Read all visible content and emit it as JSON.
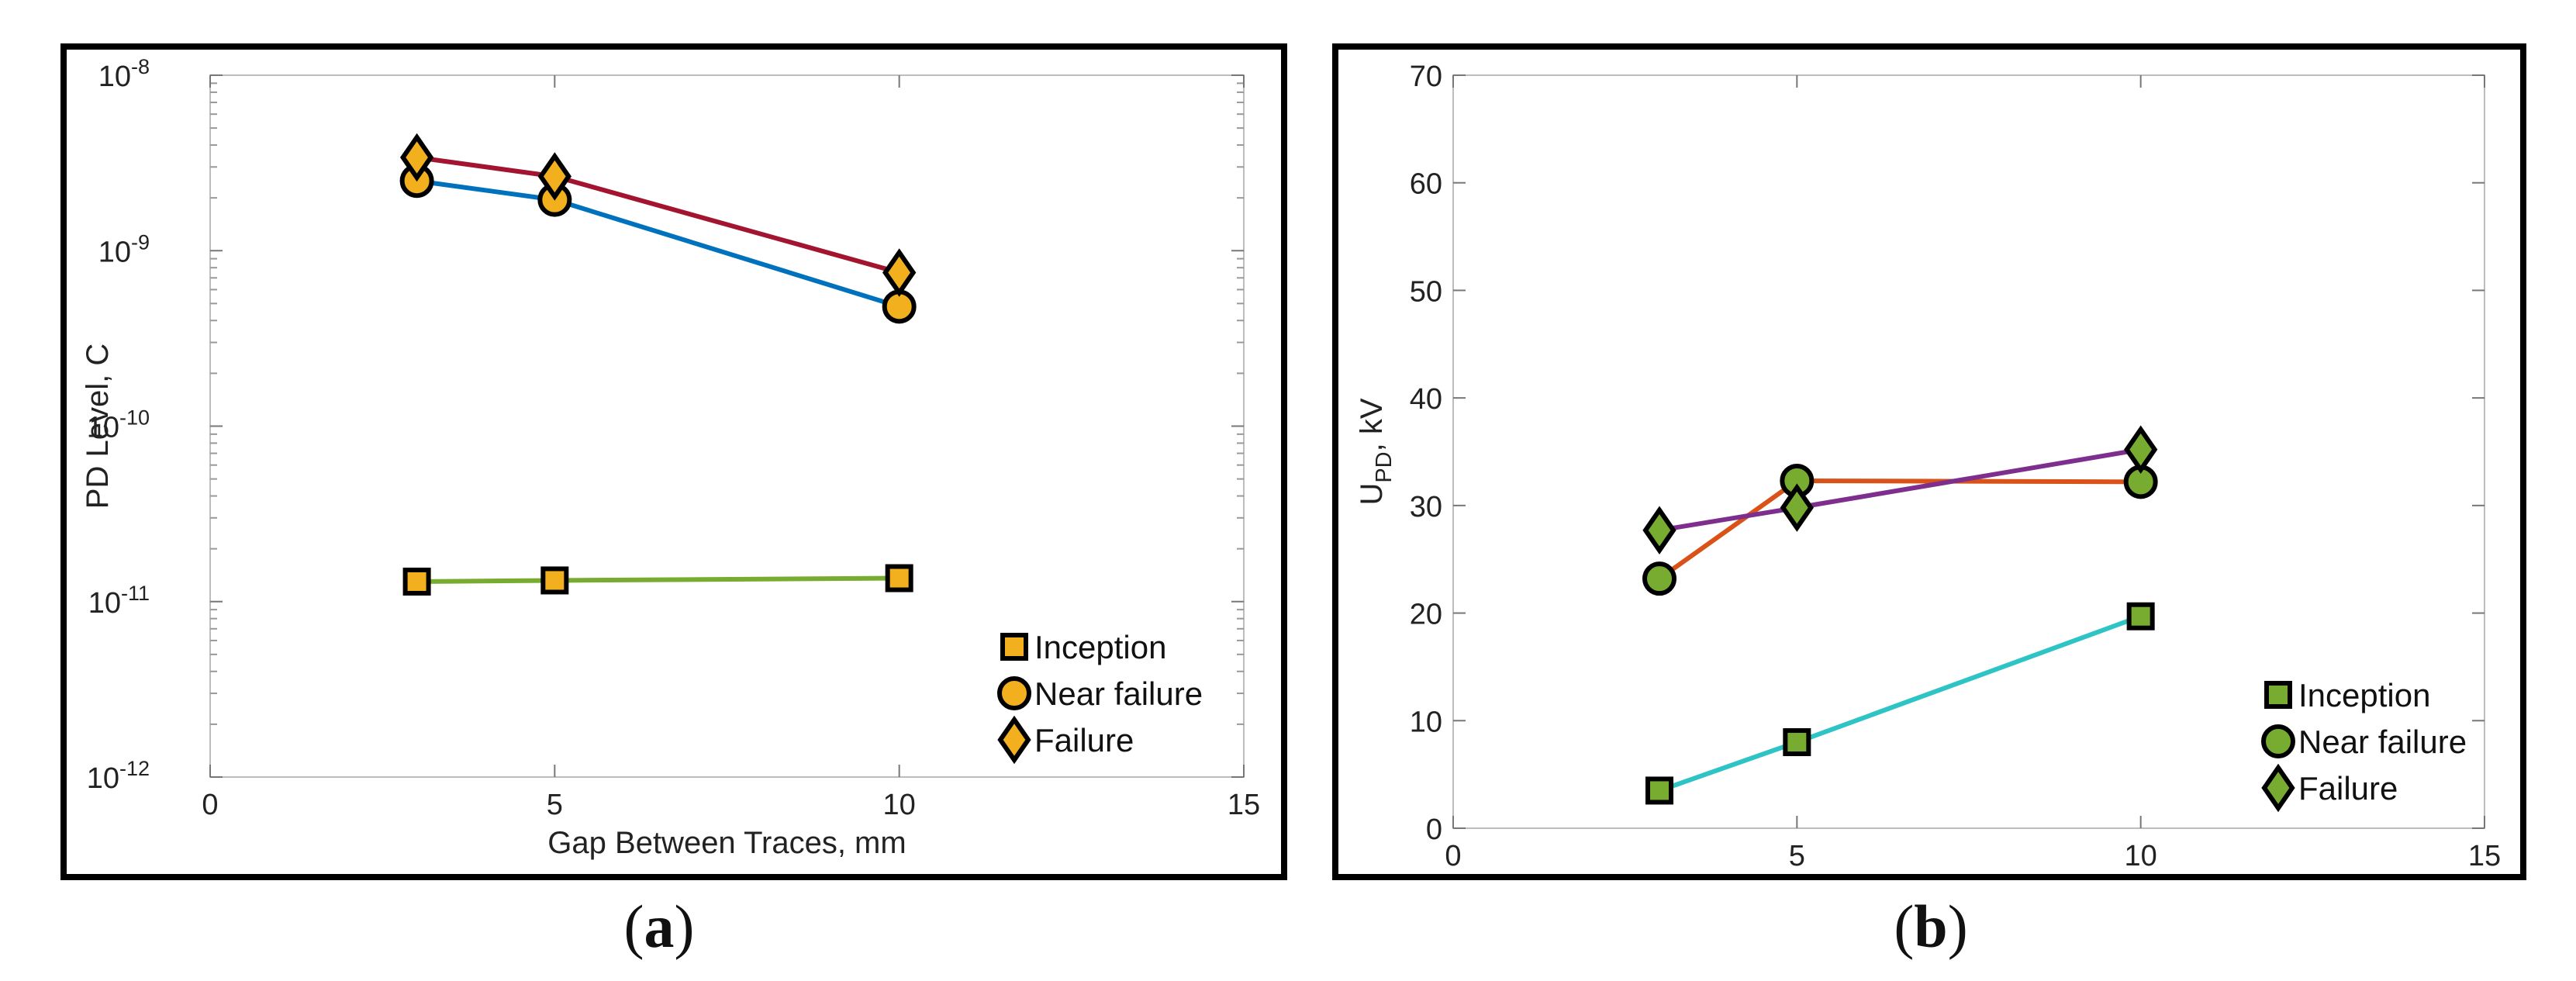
{
  "chart_data": [
    {
      "type": "line",
      "panel": "a",
      "caption_letter": "a",
      "yscale": "log",
      "xlabel": "Gap Between Traces, mm",
      "ylabel": "PD Level, C",
      "xlim": [
        0,
        15
      ],
      "ylim": [
        1e-12,
        1e-08
      ],
      "xticks": [
        0,
        5,
        10,
        15
      ],
      "yticks": [
        {
          "value": 1e-12,
          "base": "10",
          "exp": "-12"
        },
        {
          "value": 1e-11,
          "base": "10",
          "exp": "-11"
        },
        {
          "value": 1e-10,
          "base": "10",
          "exp": "-10"
        },
        {
          "value": 1e-09,
          "base": "10",
          "exp": "-9"
        },
        {
          "value": 1e-08,
          "base": "10",
          "exp": "-8"
        }
      ],
      "marker_color": "#f2b01e",
      "legend_position": "bottom-right",
      "series": [
        {
          "name": "Inception",
          "marker": "square",
          "color": "#77ac30",
          "x": [
            3,
            5,
            10
          ],
          "y": [
            1.3e-11,
            1.32e-11,
            1.36e-11
          ]
        },
        {
          "name": "Near failure",
          "marker": "circle",
          "color": "#0072bd",
          "x": [
            3,
            5,
            10
          ],
          "y": [
            2.5e-09,
            1.95e-09,
            4.8e-10
          ]
        },
        {
          "name": "Failure",
          "marker": "diamond",
          "color": "#a2142f",
          "x": [
            3,
            5,
            10
          ],
          "y": [
            3.4e-09,
            2.65e-09,
            7.5e-10
          ]
        }
      ]
    },
    {
      "type": "line",
      "panel": "b",
      "caption_letter": "b",
      "yscale": "linear",
      "xlabel": "",
      "ylabel_main": "U",
      "ylabel_sub": "PD",
      "ylabel_tail": ", kV",
      "xlim": [
        0,
        15
      ],
      "ylim": [
        0,
        70
      ],
      "xticks": [
        0,
        5,
        10,
        15
      ],
      "yticks": [
        0,
        10,
        20,
        30,
        40,
        50,
        60,
        70
      ],
      "marker_color": "#77ac30",
      "legend_position": "bottom-right",
      "series": [
        {
          "name": "Inception",
          "marker": "square",
          "color": "#2ec4c6",
          "x": [
            3,
            5,
            10
          ],
          "y": [
            3.5,
            8,
            19.7
          ]
        },
        {
          "name": "Near failure",
          "marker": "circle",
          "color": "#d95319",
          "x": [
            3,
            5,
            10
          ],
          "y": [
            23.2,
            32.3,
            32.2
          ]
        },
        {
          "name": "Failure",
          "marker": "diamond",
          "color": "#7e2f8e",
          "x": [
            3,
            5,
            10
          ],
          "y": [
            27.7,
            29.8,
            35.2
          ]
        }
      ]
    }
  ]
}
